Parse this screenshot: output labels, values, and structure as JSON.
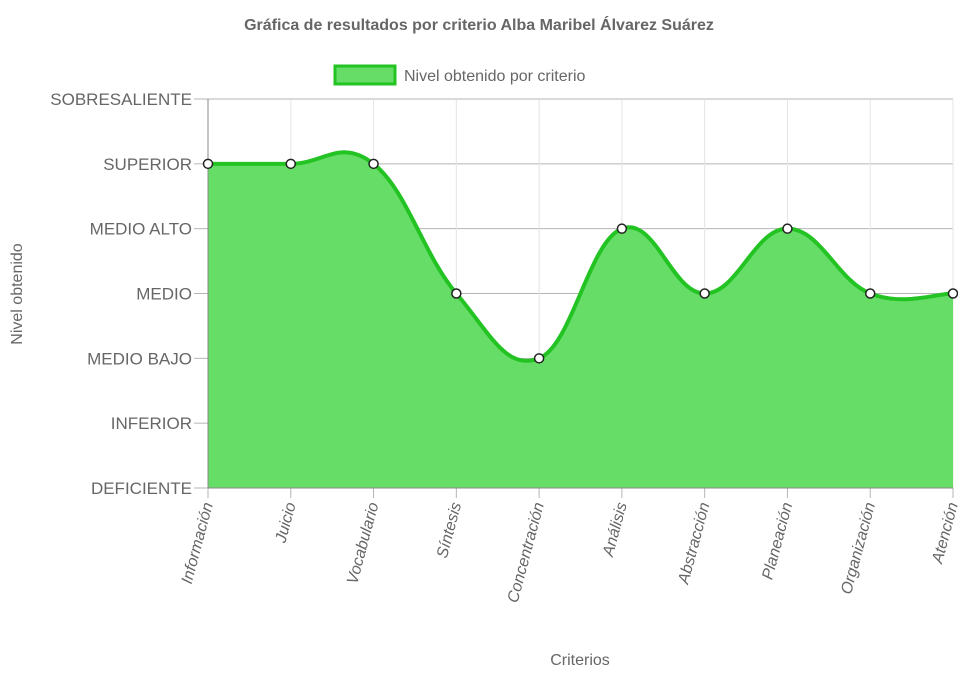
{
  "chart_data": {
    "type": "area",
    "title": "Gráfica de resultados por criterio Alba Maribel Álvarez Suárez",
    "xlabel": "Criterios",
    "ylabel": "Nivel obtenido",
    "y_levels": [
      "DEFICIENTE",
      "INFERIOR",
      "MEDIO BAJO",
      "MEDIO",
      "MEDIO ALTO",
      "SUPERIOR",
      "SOBRESALIENTE"
    ],
    "ylim": [
      0,
      6
    ],
    "categories": [
      "Información",
      "Juicio",
      "Vocabulario",
      "Síntesis",
      "Concentración",
      "Análisis",
      "Abstracción",
      "Planeación",
      "Organización",
      "Atención"
    ],
    "series": [
      {
        "name": "Nivel obtenido por criterio",
        "values": [
          5,
          5,
          5,
          3,
          2,
          4,
          3,
          4,
          3,
          3
        ],
        "fill_color": "#66dd66",
        "line_color": "#22c322"
      }
    ],
    "legend_position": "top",
    "grid": true
  }
}
